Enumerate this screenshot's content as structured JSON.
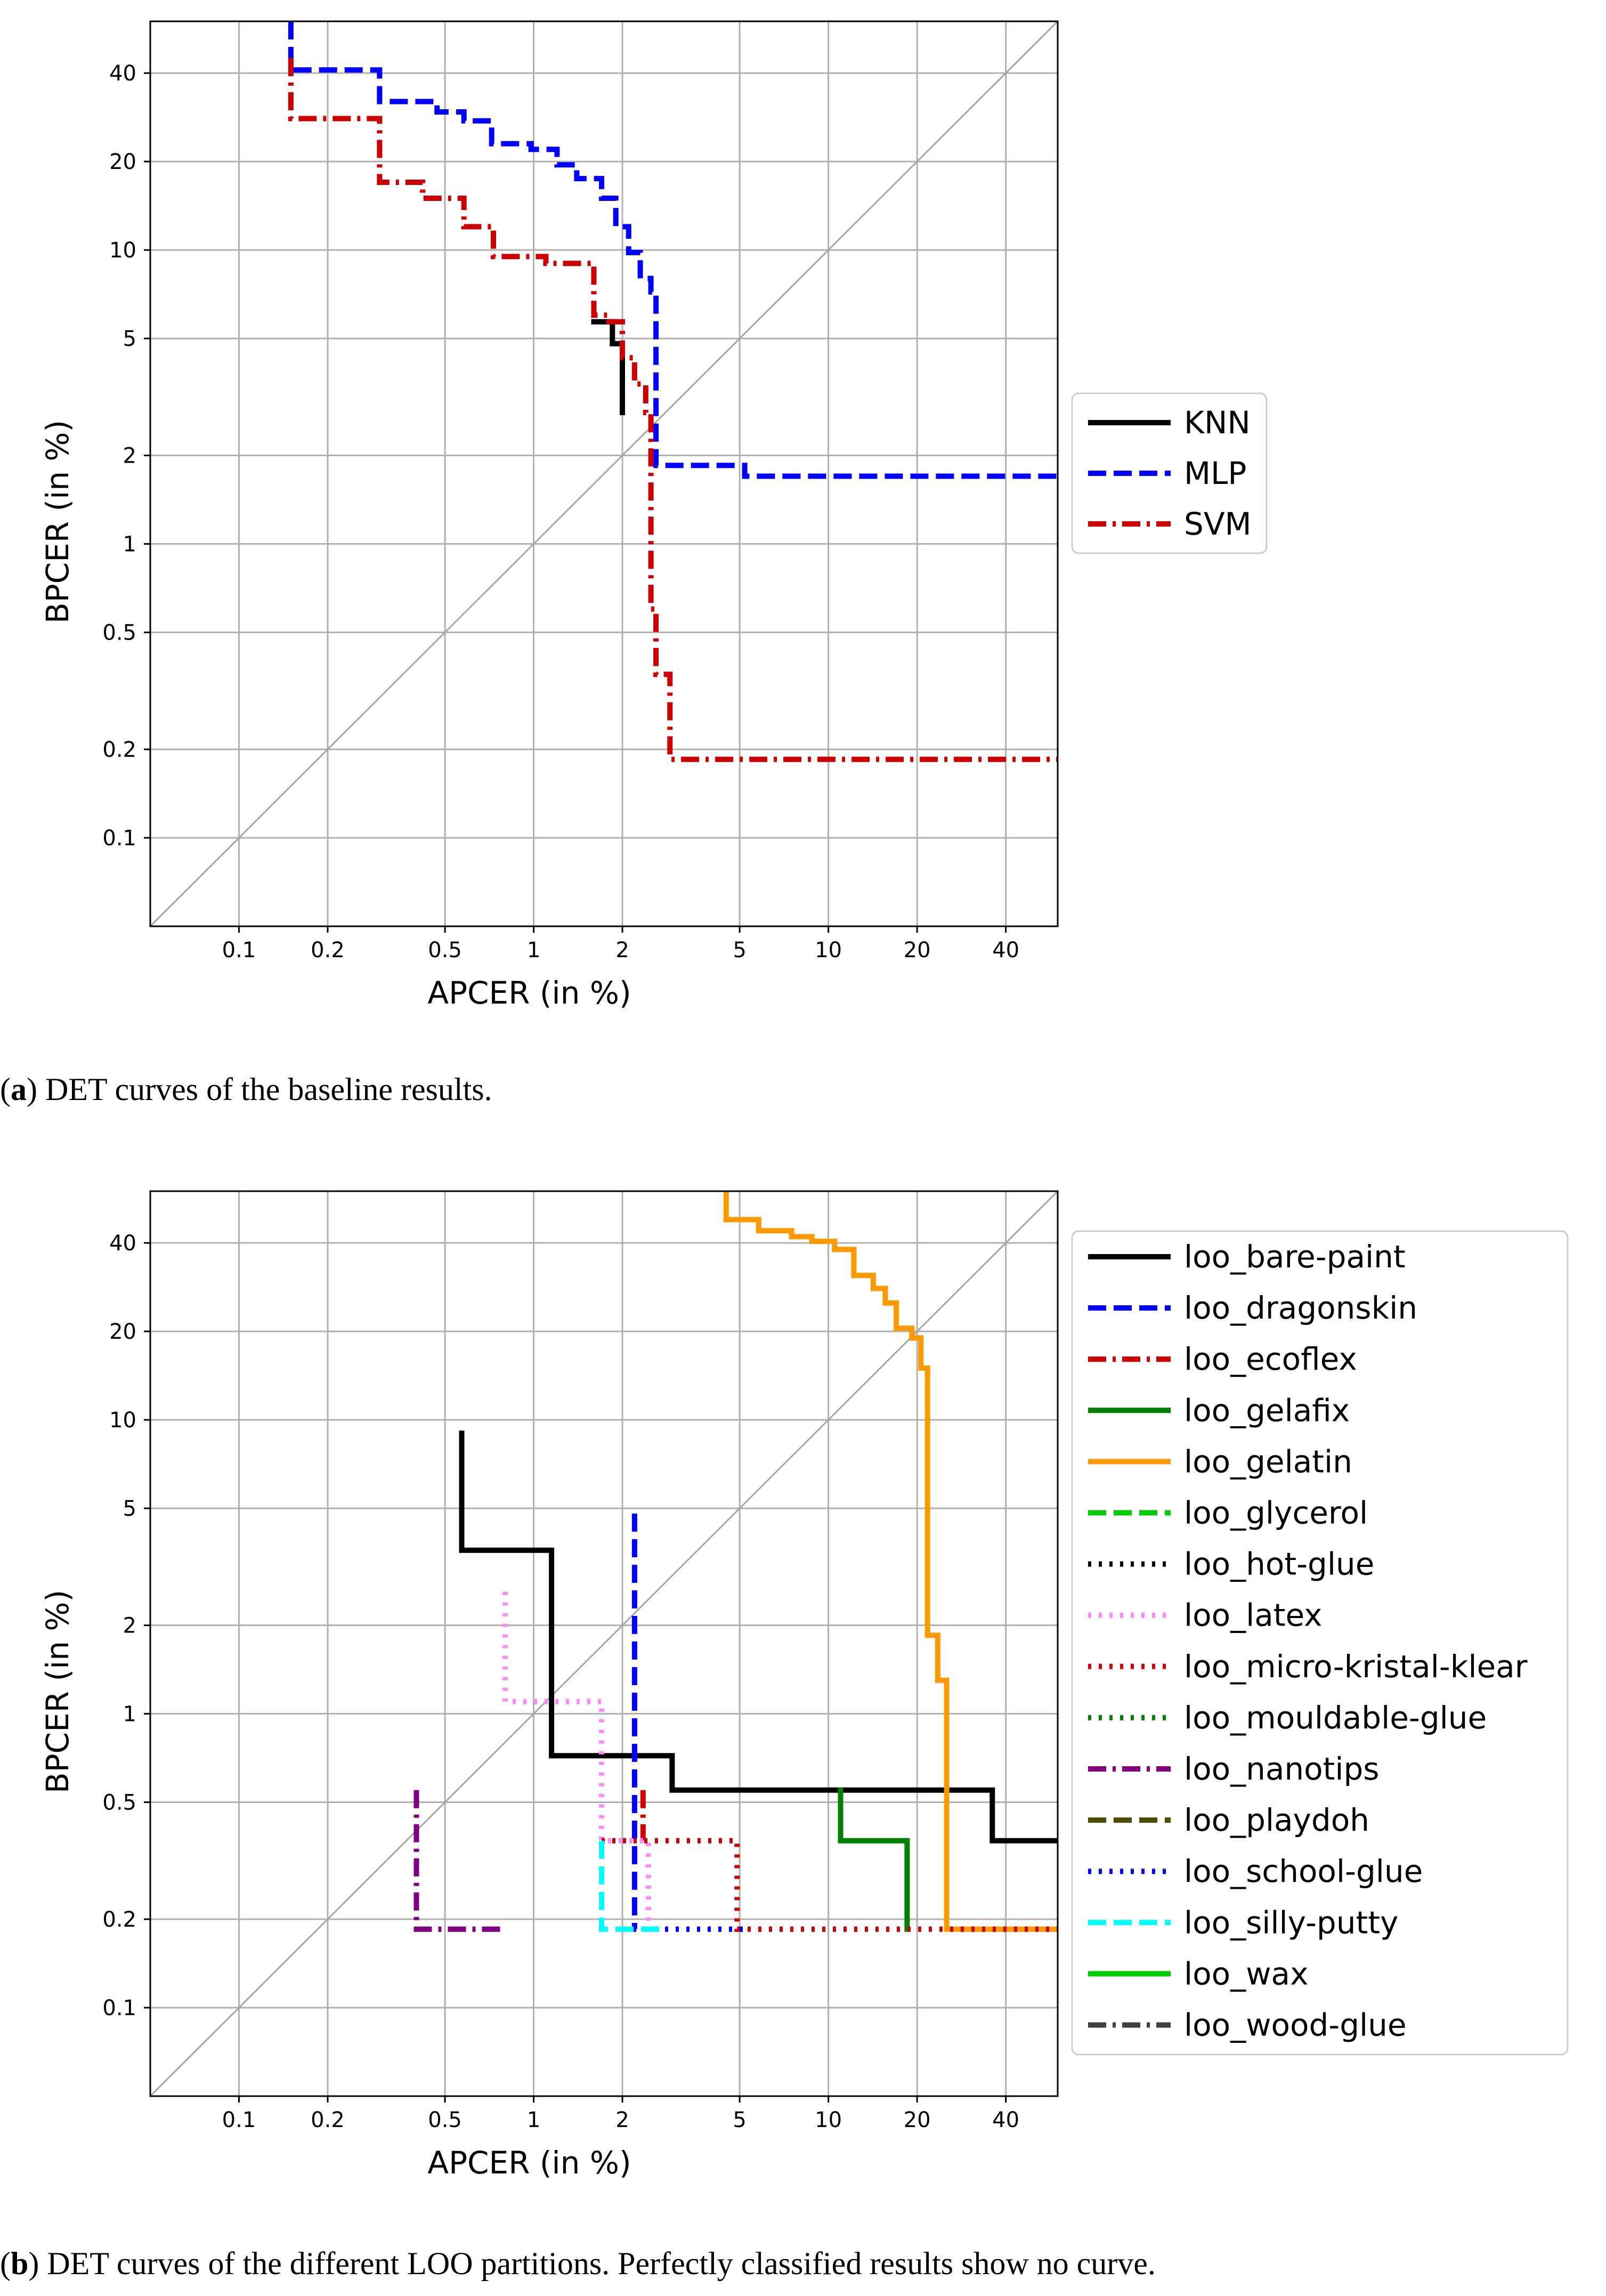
{
  "captions": {
    "a": {
      "letter": "a",
      "text": ") DET curves of the baseline results."
    },
    "b": {
      "letter": "b",
      "text": ") DET curves of the different LOO partitions. Perfectly classified results show no curve."
    }
  },
  "chart_data": [
    {
      "id": "a",
      "type": "line",
      "xlabel": "APCER (in %)",
      "ylabel": "BPCER (in %)",
      "xlim": [
        0.05,
        60
      ],
      "ylim": [
        0.05,
        60
      ],
      "xticks": [
        0.1,
        0.2,
        0.5,
        1,
        2,
        5,
        10,
        20,
        40
      ],
      "yticks": [
        0.1,
        0.2,
        0.5,
        1,
        2,
        5,
        10,
        20,
        40
      ],
      "xtick_labels": [
        "0.1",
        "0.2",
        "0.5",
        "1",
        "2",
        "5",
        "10",
        "20",
        "40"
      ],
      "ytick_labels": [
        "0.1",
        "0.2",
        "0.5",
        "1",
        "2",
        "5",
        "10",
        "20",
        "40"
      ],
      "grid": true,
      "diagonal": true,
      "legend_position": "right",
      "series": [
        {
          "name": "KNN",
          "color": "#000000",
          "dash": "solid",
          "points": [
            [
              2.0,
              2.8
            ],
            [
              2.0,
              4.8
            ],
            [
              1.85,
              4.8
            ],
            [
              1.85,
              5.7
            ],
            [
              1.6,
              5.7
            ]
          ]
        },
        {
          "name": "MLP",
          "color": "#0000ff",
          "dash": "dashed",
          "points": [
            [
              0.15,
              60
            ],
            [
              0.15,
              41
            ],
            [
              0.3,
              41
            ],
            [
              0.3,
              32
            ],
            [
              0.47,
              32
            ],
            [
              0.47,
              29.5
            ],
            [
              0.58,
              29.5
            ],
            [
              0.58,
              27.5
            ],
            [
              0.72,
              27.5
            ],
            [
              0.72,
              23
            ],
            [
              0.98,
              23
            ],
            [
              0.98,
              22
            ],
            [
              1.2,
              22
            ],
            [
              1.2,
              19.5
            ],
            [
              1.4,
              19.5
            ],
            [
              1.4,
              17.5
            ],
            [
              1.7,
              17.5
            ],
            [
              1.7,
              15
            ],
            [
              1.9,
              15
            ],
            [
              1.9,
              12
            ],
            [
              2.1,
              12
            ],
            [
              2.1,
              9.8
            ],
            [
              2.3,
              9.8
            ],
            [
              2.3,
              8
            ],
            [
              2.5,
              8
            ],
            [
              2.5,
              7.2
            ],
            [
              2.6,
              7.2
            ],
            [
              2.6,
              1.85
            ],
            [
              5.2,
              1.85
            ],
            [
              5.2,
              1.7
            ],
            [
              60,
              1.7
            ]
          ]
        },
        {
          "name": "SVM",
          "color": "#cc0000",
          "dash": "dashdot",
          "points": [
            [
              0.15,
              45
            ],
            [
              0.15,
              28
            ],
            [
              0.3,
              28
            ],
            [
              0.3,
              17
            ],
            [
              0.42,
              17
            ],
            [
              0.42,
              15
            ],
            [
              0.58,
              15
            ],
            [
              0.58,
              12
            ],
            [
              0.73,
              12
            ],
            [
              0.73,
              9.5
            ],
            [
              1.1,
              9.5
            ],
            [
              1.1,
              9
            ],
            [
              1.6,
              9
            ],
            [
              1.6,
              6
            ],
            [
              1.8,
              6
            ],
            [
              1.8,
              5.7
            ],
            [
              2.0,
              5.7
            ],
            [
              2.0,
              4.3
            ],
            [
              2.2,
              4.3
            ],
            [
              2.2,
              3.5
            ],
            [
              2.4,
              3.5
            ],
            [
              2.4,
              2.8
            ],
            [
              2.5,
              2.8
            ],
            [
              2.5,
              0.6
            ],
            [
              2.6,
              0.6
            ],
            [
              2.6,
              0.36
            ],
            [
              2.9,
              0.36
            ],
            [
              2.9,
              0.185
            ],
            [
              60,
              0.185
            ]
          ]
        }
      ]
    },
    {
      "id": "b",
      "type": "line",
      "xlabel": "APCER (in %)",
      "ylabel": "BPCER (in %)",
      "xlim": [
        0.05,
        60
      ],
      "ylim": [
        0.05,
        60
      ],
      "xticks": [
        0.1,
        0.2,
        0.5,
        1,
        2,
        5,
        10,
        20,
        40
      ],
      "yticks": [
        0.1,
        0.2,
        0.5,
        1,
        2,
        5,
        10,
        20,
        40
      ],
      "xtick_labels": [
        "0.1",
        "0.2",
        "0.5",
        "1",
        "2",
        "5",
        "10",
        "20",
        "40"
      ],
      "ytick_labels": [
        "0.1",
        "0.2",
        "0.5",
        "1",
        "2",
        "5",
        "10",
        "20",
        "40"
      ],
      "grid": true,
      "diagonal": true,
      "legend_position": "right",
      "series": [
        {
          "name": "loo_bare-paint",
          "color": "#000000",
          "dash": "solid",
          "points": [
            [
              0.57,
              9
            ],
            [
              0.57,
              3.6
            ],
            [
              1.15,
              3.6
            ],
            [
              1.15,
              0.72
            ],
            [
              2.95,
              0.72
            ],
            [
              2.95,
              0.55
            ],
            [
              36,
              0.55
            ],
            [
              36,
              0.37
            ],
            [
              60,
              0.37
            ]
          ]
        },
        {
          "name": "loo_dragonskin",
          "color": "#0000ff",
          "dash": "dashed",
          "points": [
            [
              2.2,
              4.8
            ],
            [
              2.2,
              0.185
            ]
          ]
        },
        {
          "name": "loo_ecoflex",
          "color": "#cc0000",
          "dash": "dashdot",
          "points": [
            [
              2.35,
              0.55
            ],
            [
              2.35,
              0.37
            ]
          ]
        },
        {
          "name": "loo_gelafix",
          "color": "#008000",
          "dash": "solid",
          "points": [
            [
              11,
              0.55
            ],
            [
              11,
              0.37
            ],
            [
              18.5,
              0.37
            ],
            [
              18.5,
              0.185
            ]
          ]
        },
        {
          "name": "loo_gelatin",
          "color": "#ff9900",
          "dash": "solid",
          "points": [
            [
              4.5,
              60
            ],
            [
              4.5,
              48
            ],
            [
              5.8,
              48
            ],
            [
              5.8,
              44
            ],
            [
              7.5,
              44
            ],
            [
              7.5,
              42
            ],
            [
              8.8,
              42
            ],
            [
              8.8,
              40.5
            ],
            [
              10.5,
              40.5
            ],
            [
              10.5,
              38
            ],
            [
              12.2,
              38
            ],
            [
              12.2,
              31
            ],
            [
              14.2,
              31
            ],
            [
              14.2,
              28
            ],
            [
              15.6,
              28
            ],
            [
              15.6,
              25
            ],
            [
              17,
              25
            ],
            [
              17,
              20.5
            ],
            [
              19.2,
              20.5
            ],
            [
              19.2,
              19
            ],
            [
              20.6,
              19
            ],
            [
              20.6,
              15
            ],
            [
              21.7,
              15
            ],
            [
              21.7,
              1.85
            ],
            [
              23.5,
              1.85
            ],
            [
              23.5,
              1.3
            ],
            [
              25.2,
              1.3
            ],
            [
              25.2,
              0.185
            ],
            [
              60,
              0.185
            ]
          ]
        },
        {
          "name": "loo_glycerol",
          "color": "#00cc00",
          "dash": "dashed",
          "points": []
        },
        {
          "name": "loo_hot-glue",
          "color": "#000000",
          "dash": "dotted",
          "points": []
        },
        {
          "name": "loo_latex",
          "color": "#ff88ff",
          "dash": "dotted",
          "points": [
            [
              0.8,
              2.6
            ],
            [
              0.8,
              1.1
            ],
            [
              1.7,
              1.1
            ],
            [
              1.7,
              0.37
            ],
            [
              2.45,
              0.37
            ],
            [
              2.45,
              0.185
            ]
          ]
        },
        {
          "name": "loo_micro-kristal-klear",
          "color": "#cc0000",
          "dash": "dotted",
          "points": [
            [
              1.7,
              0.37
            ],
            [
              4.9,
              0.37
            ],
            [
              4.9,
              0.185
            ],
            [
              60,
              0.185
            ]
          ]
        },
        {
          "name": "loo_mouldable-glue",
          "color": "#008000",
          "dash": "dotted",
          "points": []
        },
        {
          "name": "loo_nanotips",
          "color": "#800080",
          "dash": "dashdot",
          "points": [
            [
              0.4,
              0.55
            ],
            [
              0.4,
              0.185
            ],
            [
              0.8,
              0.185
            ]
          ]
        },
        {
          "name": "loo_playdoh",
          "color": "#4d4d00",
          "dash": "dashed",
          "points": []
        },
        {
          "name": "loo_school-glue",
          "color": "#0000ff",
          "dash": "dotted",
          "points": [
            [
              2.0,
              0.185
            ],
            [
              5.2,
              0.185
            ]
          ]
        },
        {
          "name": "loo_silly-putty",
          "color": "#00ffff",
          "dash": "dashed",
          "points": [
            [
              1.7,
              0.37
            ],
            [
              1.7,
              0.185
            ],
            [
              2.7,
              0.185
            ]
          ]
        },
        {
          "name": "loo_wax",
          "color": "#00cc00",
          "dash": "solid",
          "points": []
        },
        {
          "name": "loo_wood-glue",
          "color": "#404040",
          "dash": "dashdot",
          "points": []
        }
      ]
    }
  ]
}
